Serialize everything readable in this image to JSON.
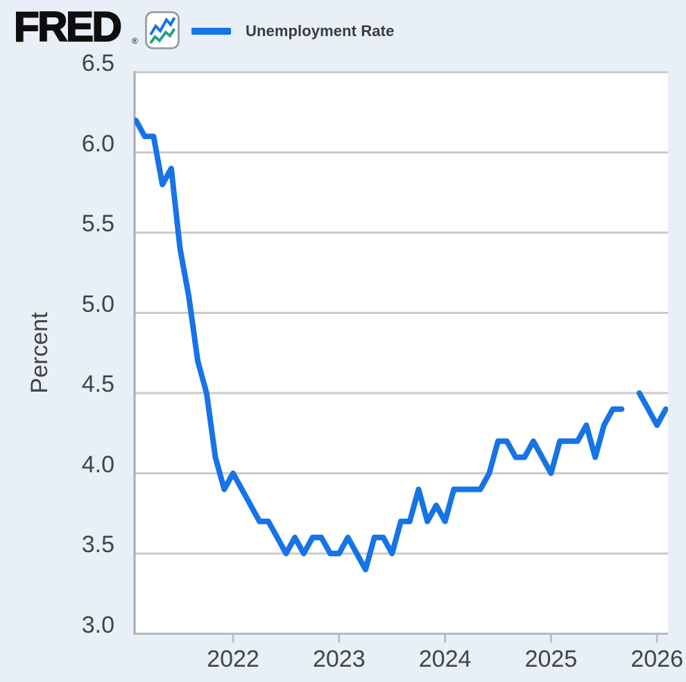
{
  "header": {
    "logo_text": "FRED",
    "registered_mark": "®",
    "logo_icon": "fred-zigzag-chart-icon"
  },
  "legend": {
    "series_label": "Unemployment Rate",
    "swatch_color": "#1673e8"
  },
  "colors": {
    "page_background": "#e9eff7",
    "plot_background": "#ffffff",
    "line_blue": "#1673e8",
    "icon_green": "#2d9e7f",
    "gridline": "#cacaca",
    "bottom_axis": "#b6b9bf",
    "left_axis": "#a7abb2",
    "x_tick_stub": "#b5bfcc",
    "tick_text": "#3f444b",
    "logo_black": "#0e0e0e"
  },
  "chart_data": {
    "type": "line",
    "title": "Unemployment Rate",
    "xlabel": "",
    "ylabel": "Percent",
    "ylim": [
      3.0,
      6.5
    ],
    "yticks": [
      3.0,
      3.5,
      4.0,
      4.5,
      5.0,
      5.5,
      6.0,
      6.5
    ],
    "xticks": [
      2022,
      2023,
      2024,
      2025,
      2026
    ],
    "x_range": [
      "2021-02",
      "2026-02"
    ],
    "grid": "horizontal",
    "legend_position": "top",
    "frequency": "monthly",
    "missing_months": [
      "2025-10"
    ],
    "series": [
      {
        "name": "Unemployment Rate",
        "color": "#1673e8",
        "points": [
          [
            "2021-02",
            6.2
          ],
          [
            "2021-03",
            6.1
          ],
          [
            "2021-04",
            6.1
          ],
          [
            "2021-05",
            5.8
          ],
          [
            "2021-06",
            5.9
          ],
          [
            "2021-07",
            5.4
          ],
          [
            "2021-08",
            5.1
          ],
          [
            "2021-09",
            4.7
          ],
          [
            "2021-10",
            4.5
          ],
          [
            "2021-11",
            4.1
          ],
          [
            "2021-12",
            3.9
          ],
          [
            "2022-01",
            4.0
          ],
          [
            "2022-02",
            3.9
          ],
          [
            "2022-03",
            3.8
          ],
          [
            "2022-04",
            3.7
          ],
          [
            "2022-05",
            3.7
          ],
          [
            "2022-06",
            3.6
          ],
          [
            "2022-07",
            3.5
          ],
          [
            "2022-08",
            3.6
          ],
          [
            "2022-09",
            3.5
          ],
          [
            "2022-10",
            3.6
          ],
          [
            "2022-11",
            3.6
          ],
          [
            "2022-12",
            3.5
          ],
          [
            "2023-01",
            3.5
          ],
          [
            "2023-02",
            3.6
          ],
          [
            "2023-03",
            3.5
          ],
          [
            "2023-04",
            3.4
          ],
          [
            "2023-05",
            3.6
          ],
          [
            "2023-06",
            3.6
          ],
          [
            "2023-07",
            3.5
          ],
          [
            "2023-08",
            3.7
          ],
          [
            "2023-09",
            3.7
          ],
          [
            "2023-10",
            3.9
          ],
          [
            "2023-11",
            3.7
          ],
          [
            "2023-12",
            3.8
          ],
          [
            "2024-01",
            3.7
          ],
          [
            "2024-02",
            3.9
          ],
          [
            "2024-03",
            3.9
          ],
          [
            "2024-04",
            3.9
          ],
          [
            "2024-05",
            3.9
          ],
          [
            "2024-06",
            4.0
          ],
          [
            "2024-07",
            4.2
          ],
          [
            "2024-08",
            4.2
          ],
          [
            "2024-09",
            4.1
          ],
          [
            "2024-10",
            4.1
          ],
          [
            "2024-11",
            4.2
          ],
          [
            "2024-12",
            4.1
          ],
          [
            "2025-01",
            4.0
          ],
          [
            "2025-02",
            4.2
          ],
          [
            "2025-03",
            4.2
          ],
          [
            "2025-04",
            4.2
          ],
          [
            "2025-05",
            4.3
          ],
          [
            "2025-06",
            4.1
          ],
          [
            "2025-07",
            4.3
          ],
          [
            "2025-08",
            4.4
          ],
          [
            "2025-09",
            4.4
          ],
          [
            "2025-10",
            null
          ],
          [
            "2025-11",
            4.5
          ],
          [
            "2025-12",
            4.4
          ],
          [
            "2026-01",
            4.3
          ],
          [
            "2026-02",
            4.4
          ]
        ]
      }
    ]
  }
}
